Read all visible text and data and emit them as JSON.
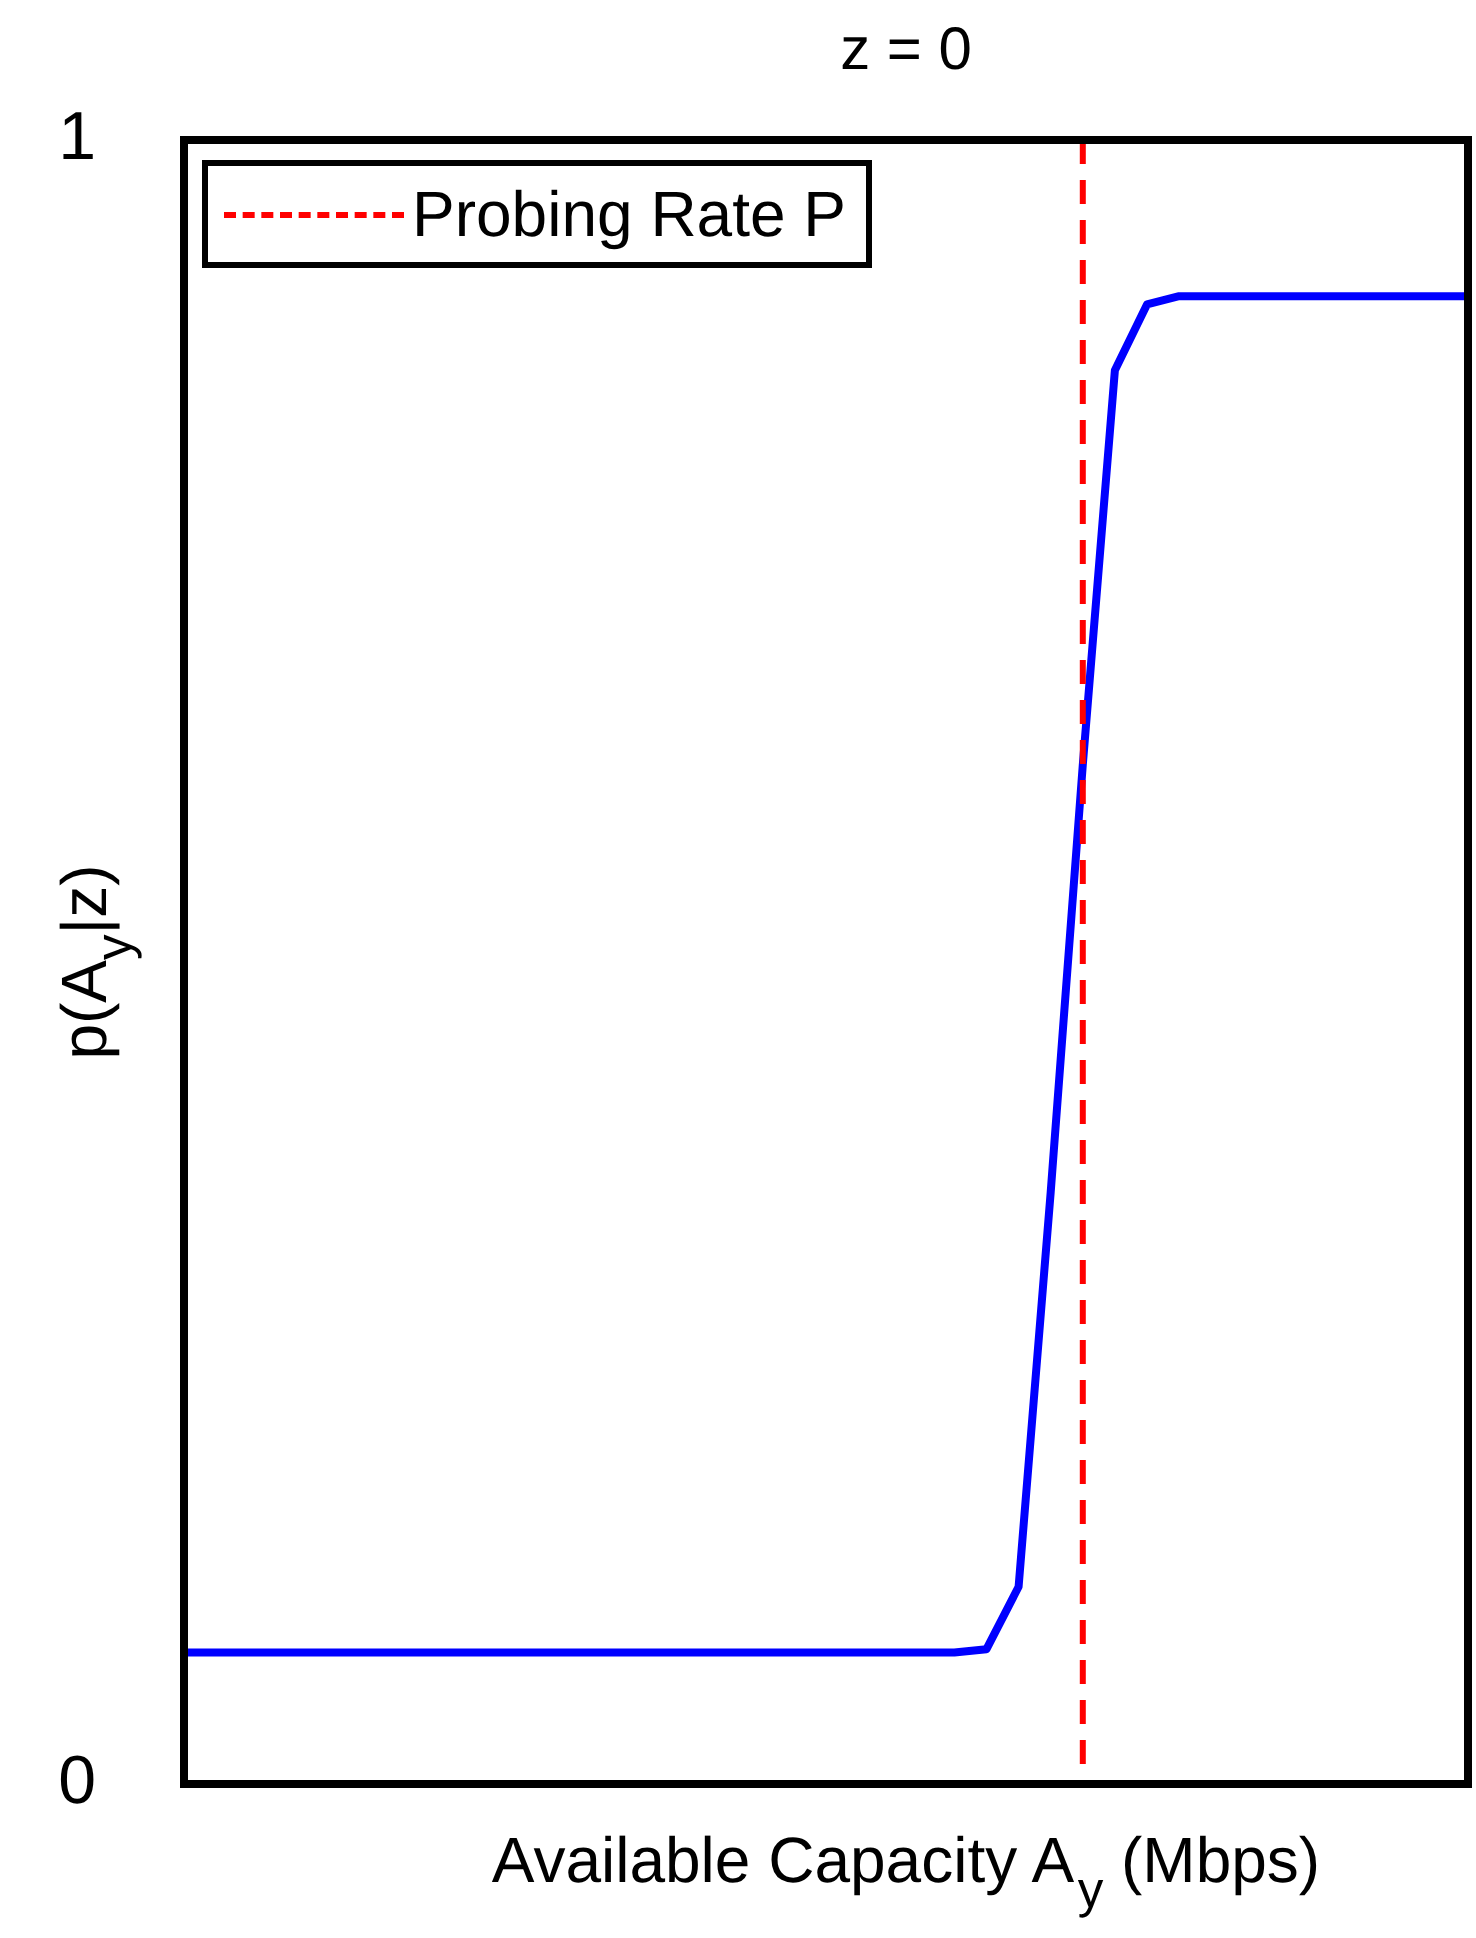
{
  "chart_data": {
    "type": "line",
    "title": "z = 0",
    "xlabel": "Available Capacity A$_{y}$ (Mbps)",
    "ylabel": "p(A$_{y}$|z)",
    "categories": [
      null,
      null,
      null,
      null,
      null,
      null,
      null,
      null,
      null,
      null,
      null,
      null,
      null,
      null,
      null,
      null,
      null,
      null,
      null,
      null,
      null,
      null,
      null,
      null,
      null,
      null,
      null,
      null,
      null,
      null,
      null,
      null,
      null,
      null,
      null,
      null,
      null,
      null,
      null,
      null,
      null
    ],
    "series": [
      {
        "color": "#0000ff",
        "values": [
          0.08,
          0.08,
          0.08,
          0.08,
          0.08,
          0.08,
          0.08,
          0.08,
          0.08,
          0.08,
          0.08,
          0.08,
          0.08,
          0.08,
          0.08,
          0.08,
          0.08,
          0.08,
          0.08,
          0.08,
          0.08,
          0.08,
          0.08,
          0.08,
          0.08,
          0.082,
          0.12,
          0.36,
          0.62,
          0.86,
          0.9,
          0.905,
          0.905,
          0.905,
          0.905,
          0.905,
          0.905,
          0.905,
          0.905,
          0.905,
          0.905
        ]
      }
    ],
    "ylim": [
      0,
      1
    ],
    "yticks": [
      0,
      1
    ],
    "marker": "none",
    "line_style": "solid",
    "annotations": [
      "Probing Rate P"
    ]
  }
}
